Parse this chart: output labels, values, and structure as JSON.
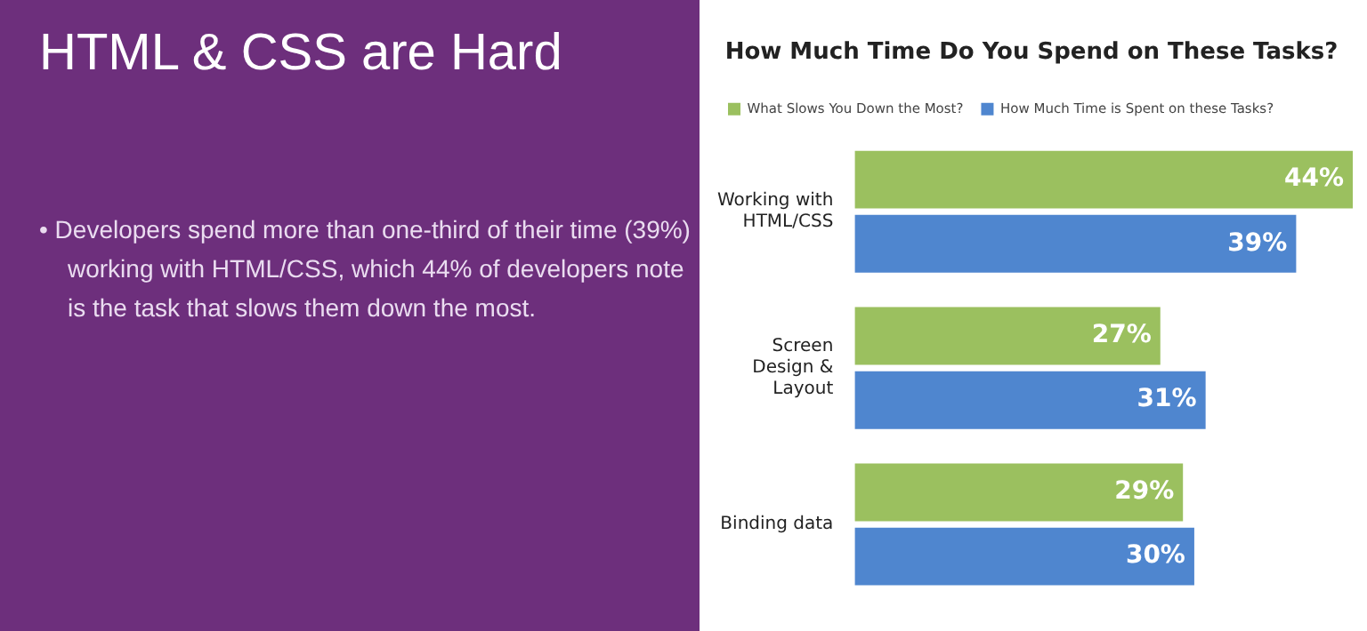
{
  "chart_data": {
    "type": "bar",
    "orientation": "horizontal",
    "title": "How Much Time Do You Spend on These Tasks?",
    "annotations": [
      "HTML & CSS are Hard",
      "• Developers spend more than one-third of their time (39%) working with HTML/CSS, which 44% of developers note is the task that slows them down the most."
    ],
    "categories": [
      "Working with HTML/CSS",
      "Screen Design & Layout",
      "Binding data"
    ],
    "series": [
      {
        "name": "What Slows You Down the Most?",
        "color": "#9bc05f",
        "values": [
          44,
          27,
          29
        ],
        "value_labels": [
          "44%",
          "27%",
          "29%"
        ]
      },
      {
        "name": "How Much Time is Spent on these Tasks?",
        "color": "#4f86cf",
        "values": [
          39,
          31,
          30
        ],
        "value_labels": [
          "39%",
          "31%",
          "30%"
        ]
      }
    ],
    "xlim": [
      0,
      44
    ],
    "tick_labels": "y",
    "legend": "top left"
  }
}
